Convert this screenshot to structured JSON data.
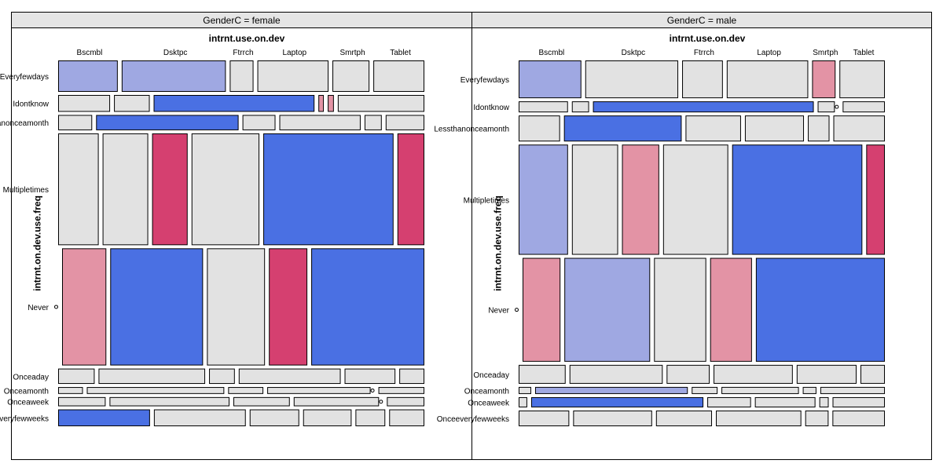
{
  "chart_data": {
    "type": "mosaic",
    "xvar": "intrnt.use.on.dev",
    "yvar": "intrnt.on.dev.use.freq",
    "colors": {
      "strong_blue": "#4a70e3",
      "light_blue": "#9fa8e2",
      "neutral": "#e2e2e2",
      "light_red": "#e393a5",
      "strong_red": "#d54070",
      "border": "#000000"
    },
    "panels": [
      {
        "title": "GenderC = female",
        "x_labels": [
          "Bscmbl",
          "Dsktpc",
          "Ftrrch",
          "Laptop",
          "Smrtph",
          "Tablet"
        ],
        "rows": [
          {
            "label": "Everyfewdays",
            "weight": 0.0732,
            "cells": [
              {
                "w": 0.166,
                "c": "light_blue"
              },
              {
                "w": 0.29,
                "c": "light_blue"
              },
              {
                "w": 0.066,
                "c": "neutral"
              },
              {
                "w": 0.198,
                "c": "neutral"
              },
              {
                "w": 0.103,
                "c": "neutral"
              },
              {
                "w": 0.142,
                "c": "neutral"
              }
            ]
          },
          {
            "label": "Idontknow",
            "weight": 0.0393,
            "cells": [
              {
                "w": 0.144,
                "c": "neutral"
              },
              {
                "w": 0.099,
                "c": "neutral"
              },
              {
                "w": 0.446,
                "c": "strong_blue"
              },
              {
                "w": 0.015,
                "c": "light_red"
              },
              {
                "w": 0.017,
                "c": "light_red"
              },
              {
                "w": 0.24,
                "c": "neutral"
              }
            ]
          },
          {
            "label": "Lessthanonceamonth",
            "weight": 0.0357,
            "cells": [
              {
                "w": 0.095,
                "c": "neutral"
              },
              {
                "w": 0.398,
                "c": "strong_blue"
              },
              {
                "w": 0.092,
                "c": "neutral"
              },
              {
                "w": 0.227,
                "c": "neutral"
              },
              {
                "w": 0.048,
                "c": "neutral"
              },
              {
                "w": 0.108,
                "c": "neutral"
              }
            ]
          },
          {
            "label": "Multipletimes",
            "weight": 0.2607,
            "cells": [
              {
                "w": 0.113,
                "c": "neutral"
              },
              {
                "w": 0.127,
                "c": "neutral"
              },
              {
                "w": 0.099,
                "c": "strong_red"
              },
              {
                "w": 0.189,
                "c": "neutral"
              },
              {
                "w": 0.363,
                "c": "strong_blue"
              },
              {
                "w": 0.075,
                "c": "strong_red"
              }
            ]
          },
          {
            "label": "Never",
            "weight": 0.2732,
            "cells": [
              {
                "w": 0.0,
                "c": "neutral"
              },
              {
                "w": 0.122,
                "c": "light_red"
              },
              {
                "w": 0.256,
                "c": "strong_blue"
              },
              {
                "w": 0.16,
                "c": "neutral"
              },
              {
                "w": 0.106,
                "c": "strong_red"
              },
              {
                "w": 0.312,
                "c": "strong_blue"
              }
            ]
          },
          {
            "label": "Onceaday",
            "weight": 0.0357,
            "cells": [
              {
                "w": 0.102,
                "c": "neutral"
              },
              {
                "w": 0.298,
                "c": "neutral"
              },
              {
                "w": 0.072,
                "c": "neutral"
              },
              {
                "w": 0.285,
                "c": "neutral"
              },
              {
                "w": 0.142,
                "c": "neutral"
              },
              {
                "w": 0.07,
                "c": "neutral"
              }
            ]
          },
          {
            "label": "Onceamonth",
            "weight": 0.0161,
            "cells": [
              {
                "w": 0.069,
                "c": "neutral"
              },
              {
                "w": 0.383,
                "c": "neutral"
              },
              {
                "w": 0.098,
                "c": "neutral"
              },
              {
                "w": 0.288,
                "c": "neutral"
              },
              {
                "w": 0.0,
                "c": "neutral"
              },
              {
                "w": 0.128,
                "c": "neutral"
              }
            ]
          },
          {
            "label": "Onceaweek",
            "weight": 0.0214,
            "cells": [
              {
                "w": 0.133,
                "c": "neutral"
              },
              {
                "w": 0.336,
                "c": "neutral"
              },
              {
                "w": 0.158,
                "c": "neutral"
              },
              {
                "w": 0.239,
                "c": "neutral"
              },
              {
                "w": 0.0,
                "c": "neutral"
              },
              {
                "w": 0.105,
                "c": "neutral"
              }
            ]
          },
          {
            "label": "Onceeveryfewweeks",
            "weight": 0.0393,
            "cells": [
              {
                "w": 0.256,
                "c": "strong_blue"
              },
              {
                "w": 0.256,
                "c": "neutral"
              },
              {
                "w": 0.138,
                "c": "neutral"
              },
              {
                "w": 0.135,
                "c": "neutral"
              },
              {
                "w": 0.083,
                "c": "neutral"
              },
              {
                "w": 0.098,
                "c": "neutral"
              }
            ]
          }
        ]
      },
      {
        "title": "GenderC = male",
        "x_labels": [
          "Bscmbl",
          "Dsktpc",
          "Ftrrch",
          "Laptop",
          "Smrtph",
          "Tablet"
        ],
        "rows": [
          {
            "label": "Everyfewdays",
            "weight": 0.0857,
            "cells": [
              {
                "w": 0.174,
                "c": "light_blue"
              },
              {
                "w": 0.258,
                "c": "neutral"
              },
              {
                "w": 0.113,
                "c": "neutral"
              },
              {
                "w": 0.226,
                "c": "neutral"
              },
              {
                "w": 0.065,
                "c": "light_red"
              },
              {
                "w": 0.126,
                "c": "neutral"
              }
            ]
          },
          {
            "label": "Idontknow",
            "weight": 0.025,
            "cells": [
              {
                "w": 0.138,
                "c": "neutral"
              },
              {
                "w": 0.048,
                "c": "neutral"
              },
              {
                "w": 0.618,
                "c": "strong_blue"
              },
              {
                "w": 0.048,
                "c": "neutral"
              },
              {
                "w": 0.0,
                "c": "neutral"
              },
              {
                "w": 0.118,
                "c": "neutral"
              }
            ]
          },
          {
            "label": "Lessthanonceamonth",
            "weight": 0.0589,
            "cells": [
              {
                "w": 0.115,
                "c": "neutral"
              },
              {
                "w": 0.327,
                "c": "strong_blue"
              },
              {
                "w": 0.154,
                "c": "neutral"
              },
              {
                "w": 0.164,
                "c": "neutral"
              },
              {
                "w": 0.06,
                "c": "neutral"
              },
              {
                "w": 0.143,
                "c": "neutral"
              }
            ]
          },
          {
            "label": "Multipletimes",
            "weight": 0.25,
            "cells": [
              {
                "w": 0.138,
                "c": "light_blue"
              },
              {
                "w": 0.129,
                "c": "neutral"
              },
              {
                "w": 0.104,
                "c": "light_red"
              },
              {
                "w": 0.182,
                "c": "neutral"
              },
              {
                "w": 0.364,
                "c": "strong_blue"
              },
              {
                "w": 0.052,
                "c": "strong_red"
              }
            ]
          },
          {
            "label": "Never",
            "weight": 0.2357,
            "cells": [
              {
                "w": 0.0,
                "c": "neutral"
              },
              {
                "w": 0.106,
                "c": "light_red"
              },
              {
                "w": 0.24,
                "c": "light_blue"
              },
              {
                "w": 0.146,
                "c": "neutral"
              },
              {
                "w": 0.117,
                "c": "light_red"
              },
              {
                "w": 0.361,
                "c": "strong_blue"
              }
            ]
          },
          {
            "label": "Onceaday",
            "weight": 0.0429,
            "cells": [
              {
                "w": 0.131,
                "c": "neutral"
              },
              {
                "w": 0.26,
                "c": "neutral"
              },
              {
                "w": 0.12,
                "c": "neutral"
              },
              {
                "w": 0.221,
                "c": "neutral"
              },
              {
                "w": 0.167,
                "c": "neutral"
              },
              {
                "w": 0.068,
                "c": "neutral"
              }
            ]
          },
          {
            "label": "Onceamonth",
            "weight": 0.0161,
            "cells": [
              {
                "w": 0.035,
                "c": "neutral"
              },
              {
                "w": 0.426,
                "c": "light_blue"
              },
              {
                "w": 0.072,
                "c": "neutral"
              },
              {
                "w": 0.216,
                "c": "neutral"
              },
              {
                "w": 0.038,
                "c": "neutral"
              },
              {
                "w": 0.18,
                "c": "neutral"
              }
            ]
          },
          {
            "label": "Onceaweek",
            "weight": 0.0232,
            "cells": [
              {
                "w": 0.024,
                "c": "neutral"
              },
              {
                "w": 0.481,
                "c": "strong_blue"
              },
              {
                "w": 0.122,
                "c": "neutral"
              },
              {
                "w": 0.169,
                "c": "neutral"
              },
              {
                "w": 0.026,
                "c": "neutral"
              },
              {
                "w": 0.146,
                "c": "neutral"
              }
            ]
          },
          {
            "label": "Onceeveryfewweeks",
            "weight": 0.0357,
            "cells": [
              {
                "w": 0.141,
                "c": "neutral"
              },
              {
                "w": 0.22,
                "c": "neutral"
              },
              {
                "w": 0.156,
                "c": "neutral"
              },
              {
                "w": 0.238,
                "c": "neutral"
              },
              {
                "w": 0.065,
                "c": "neutral"
              },
              {
                "w": 0.146,
                "c": "neutral"
              }
            ]
          }
        ]
      }
    ]
  }
}
